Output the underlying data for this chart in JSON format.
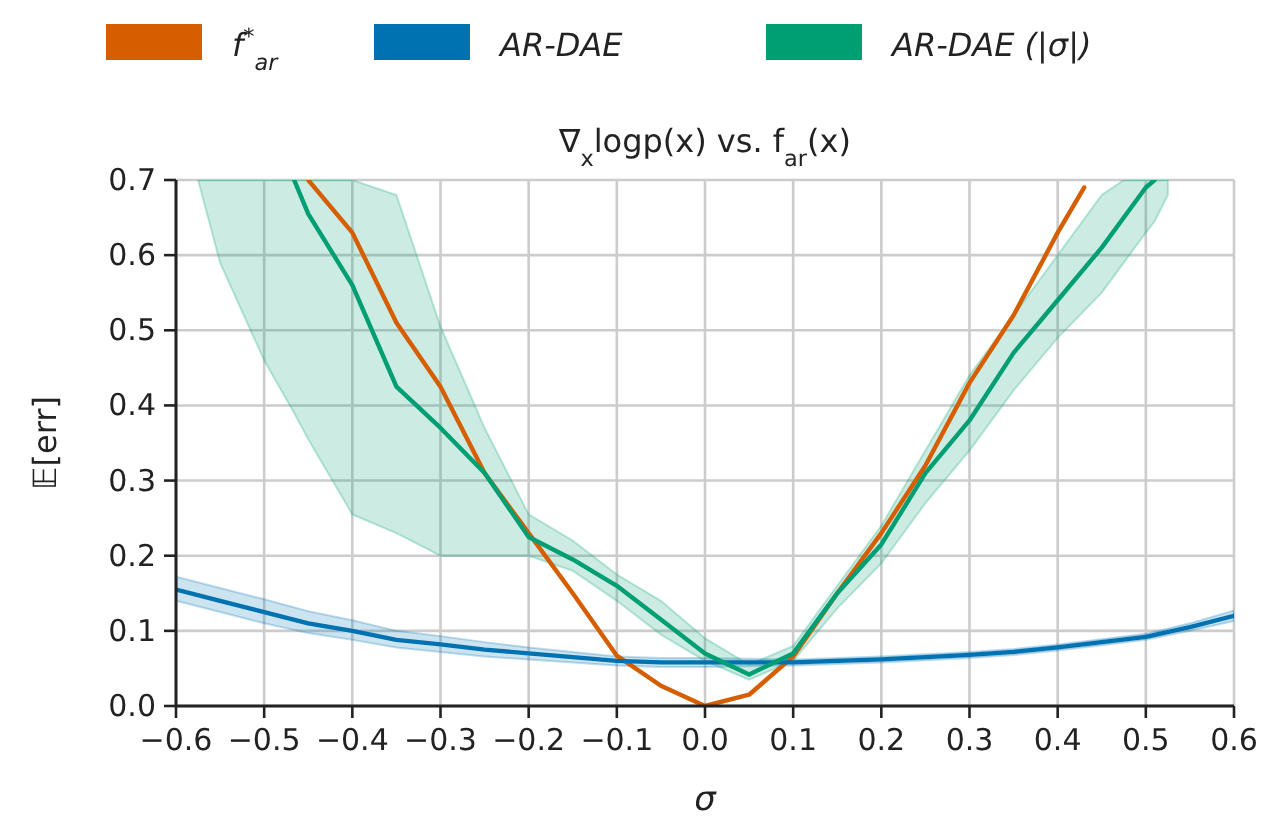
{
  "chart_data": {
    "type": "line",
    "title": "∇$_{x}$logp(x) vs. f$_{ar}$(x)",
    "xlabel": "σ",
    "ylabel": "𝔼[err]",
    "xlim": [
      -0.6,
      0.6
    ],
    "ylim": [
      0,
      0.7
    ],
    "xticks": [
      {
        "value": -0.6,
        "label": "−0.6"
      },
      {
        "value": -0.5,
        "label": "−0.5"
      },
      {
        "value": -0.4,
        "label": "−0.4"
      },
      {
        "value": -0.3,
        "label": "−0.3"
      },
      {
        "value": -0.2,
        "label": "−0.2"
      },
      {
        "value": -0.1,
        "label": "−0.1"
      },
      {
        "value": 0,
        "label": "0.0"
      },
      {
        "value": 0.1,
        "label": "0.1"
      },
      {
        "value": 0.2,
        "label": "0.2"
      },
      {
        "value": 0.3,
        "label": "0.3"
      },
      {
        "value": 0.4,
        "label": "0.4"
      },
      {
        "value": 0.5,
        "label": "0.5"
      },
      {
        "value": 0.6,
        "label": "0.6"
      }
    ],
    "yticks": [
      {
        "value": 0,
        "label": "0.0"
      },
      {
        "value": 0.1,
        "label": "0.1"
      },
      {
        "value": 0.2,
        "label": "0.2"
      },
      {
        "value": 0.3,
        "label": "0.3"
      },
      {
        "value": 0.4,
        "label": "0.4"
      },
      {
        "value": 0.5,
        "label": "0.5"
      },
      {
        "value": 0.6,
        "label": "0.6"
      },
      {
        "value": 0.7,
        "label": "0.7"
      }
    ],
    "grid": true,
    "legend": "top",
    "line_style": "solid",
    "marker": "none",
    "series": [
      {
        "name": "f$^{*}$$_{ar}$",
        "color": "#d55e00",
        "x": [
          -0.45,
          -0.4,
          -0.35,
          -0.3,
          -0.25,
          -0.2,
          -0.15,
          -0.1,
          -0.05,
          0,
          0.05,
          0.1,
          0.15,
          0.2,
          0.25,
          0.3,
          0.35,
          0.4,
          0.43
        ],
        "values": [
          0.7,
          0.63,
          0.51,
          0.425,
          0.31,
          0.23,
          0.15,
          0.067,
          0.027,
          0.0,
          0.015,
          0.066,
          0.15,
          0.23,
          0.32,
          0.43,
          0.52,
          0.63,
          0.69
        ]
      },
      {
        "name": "AR-DAE",
        "color": "#0072b2",
        "x": [
          -0.6,
          -0.55,
          -0.5,
          -0.45,
          -0.4,
          -0.35,
          -0.3,
          -0.25,
          -0.2,
          -0.15,
          -0.1,
          -0.05,
          0,
          0.05,
          0.1,
          0.15,
          0.2,
          0.25,
          0.3,
          0.35,
          0.4,
          0.45,
          0.5,
          0.55,
          0.6
        ],
        "values": [
          0.155,
          0.14,
          0.125,
          0.11,
          0.1,
          0.088,
          0.082,
          0.075,
          0.07,
          0.065,
          0.06,
          0.058,
          0.058,
          0.058,
          0.058,
          0.06,
          0.062,
          0.065,
          0.068,
          0.072,
          0.078,
          0.085,
          0.092,
          0.105,
          0.12
        ],
        "lower": [
          0.14,
          0.125,
          0.11,
          0.097,
          0.088,
          0.078,
          0.072,
          0.066,
          0.062,
          0.058,
          0.054,
          0.052,
          0.052,
          0.053,
          0.054,
          0.056,
          0.058,
          0.061,
          0.064,
          0.068,
          0.074,
          0.081,
          0.088,
          0.1,
          0.113
        ],
        "upper": [
          0.172,
          0.157,
          0.142,
          0.126,
          0.114,
          0.1,
          0.093,
          0.085,
          0.078,
          0.072,
          0.066,
          0.064,
          0.064,
          0.063,
          0.062,
          0.064,
          0.066,
          0.069,
          0.072,
          0.076,
          0.082,
          0.089,
          0.096,
          0.11,
          0.127
        ]
      },
      {
        "name": "AR-DAE (|σ|)",
        "color": "#009e73",
        "x": [
          -0.575,
          -0.55,
          -0.5,
          -0.466,
          -0.45,
          -0.4,
          -0.35,
          -0.3,
          -0.25,
          -0.2,
          -0.15,
          -0.1,
          -0.05,
          0,
          0.05,
          0.1,
          0.15,
          0.2,
          0.25,
          0.3,
          0.35,
          0.4,
          0.45,
          0.475,
          0.5,
          0.51,
          0.525
        ],
        "values": [
          null,
          null,
          null,
          0.7,
          0.655,
          0.56,
          0.425,
          0.37,
          0.31,
          0.225,
          0.195,
          0.16,
          0.115,
          0.07,
          0.042,
          0.07,
          0.15,
          0.215,
          0.31,
          0.38,
          0.47,
          0.54,
          0.61,
          0.65,
          0.69,
          0.7,
          null
        ],
        "lower": [
          0.7,
          0.59,
          0.46,
          0.39,
          0.355,
          0.255,
          0.23,
          0.2,
          0.2,
          0.2,
          0.18,
          0.14,
          0.095,
          0.06,
          0.035,
          0.06,
          0.13,
          0.19,
          0.27,
          0.34,
          0.42,
          0.49,
          0.55,
          0.59,
          0.63,
          0.645,
          0.68
        ],
        "upper": [
          0.7,
          0.7,
          0.7,
          0.7,
          0.7,
          0.7,
          0.68,
          0.505,
          0.37,
          0.255,
          0.22,
          0.175,
          0.14,
          0.09,
          0.055,
          0.08,
          0.16,
          0.24,
          0.34,
          0.44,
          0.52,
          0.6,
          0.68,
          0.7,
          0.7,
          0.7,
          0.7
        ]
      }
    ]
  }
}
